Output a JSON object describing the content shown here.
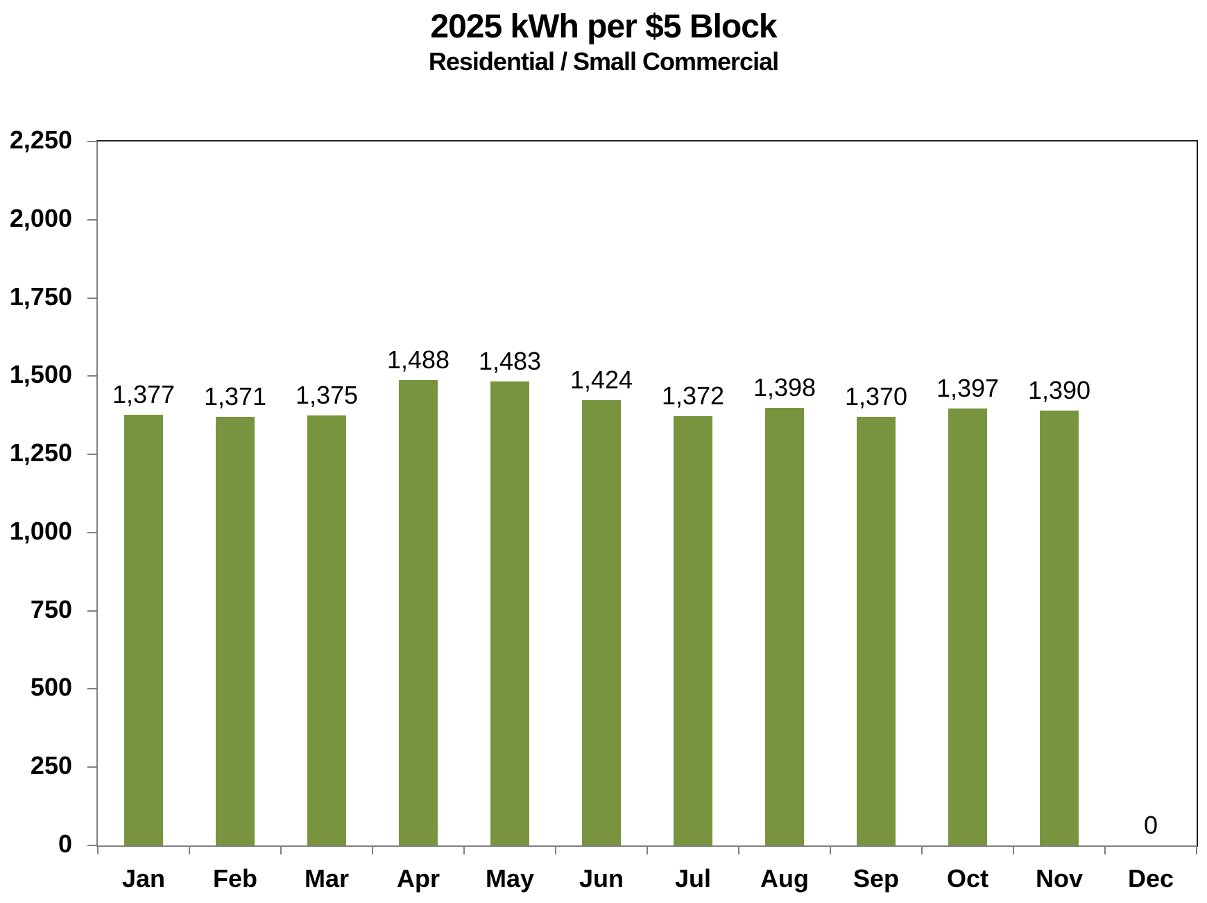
{
  "title": "2025 kWh per $5 Block",
  "subtitle": "Residential / Small Commercial",
  "colors": {
    "bar": "#78943E",
    "axis_line": "#808080",
    "plot_border": "#1F1F1F",
    "text": "#000000"
  },
  "chart_data": {
    "type": "bar",
    "title": "2025 kWh per $5 Block",
    "subtitle": "Residential / Small Commercial",
    "categories": [
      "Jan",
      "Feb",
      "Mar",
      "Apr",
      "May",
      "Jun",
      "Jul",
      "Aug",
      "Sep",
      "Oct",
      "Nov",
      "Dec"
    ],
    "values": [
      1377,
      1371,
      1375,
      1488,
      1483,
      1424,
      1372,
      1398,
      1370,
      1397,
      1390,
      0
    ],
    "data_labels": [
      "1,377",
      "1,371",
      "1,375",
      "1,488",
      "1,483",
      "1,424",
      "1,372",
      "1,398",
      "1,370",
      "1,397",
      "1,390",
      "0"
    ],
    "xlabel": "",
    "ylabel": "",
    "ylim": [
      0,
      2250
    ],
    "ytick_interval": 250,
    "ytick_labels": [
      "0",
      "250",
      "500",
      "750",
      "1,000",
      "1,250",
      "1,500",
      "1,750",
      "2,000",
      "2,250"
    ],
    "grid": false,
    "legend": false,
    "bar_color": "#78943E"
  }
}
